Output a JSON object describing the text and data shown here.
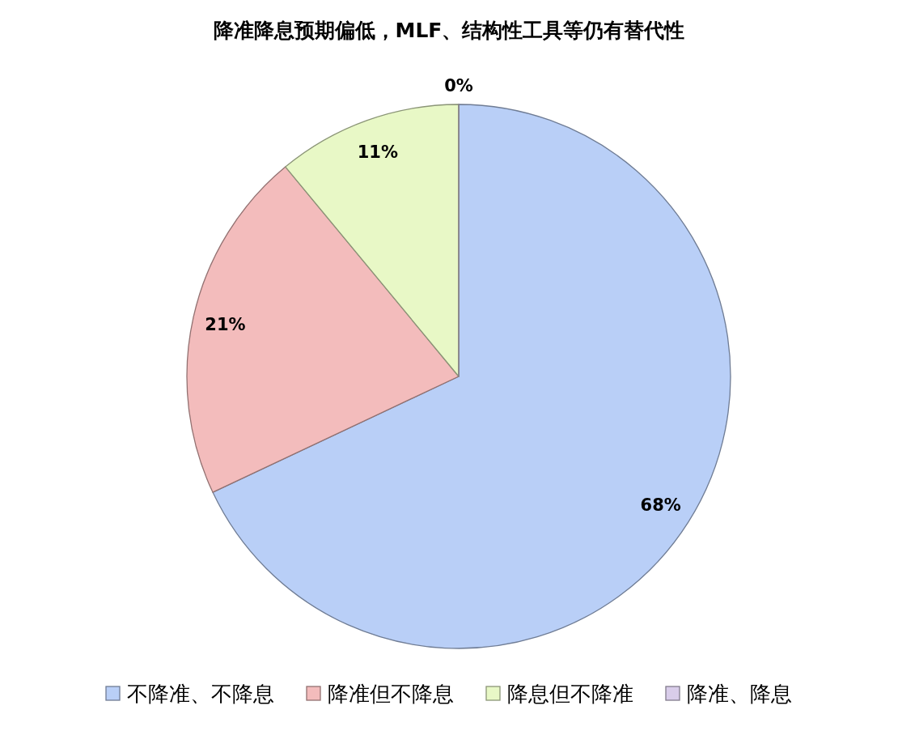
{
  "chart_data": {
    "type": "pie",
    "title": "降准降息预期偏低，MLF、结构性工具等仍有替代性",
    "categories": [
      "不降准、不降息",
      "降准但不降息",
      "降息但不降准",
      "降准、降息"
    ],
    "values": [
      68,
      21,
      11,
      0
    ],
    "value_labels": [
      "68%",
      "21%",
      "11%",
      "0%"
    ],
    "colors": [
      "#b9cff7",
      "#f3bcbc",
      "#e8f8c6",
      "#d9cdea"
    ],
    "legend": "bottom"
  }
}
